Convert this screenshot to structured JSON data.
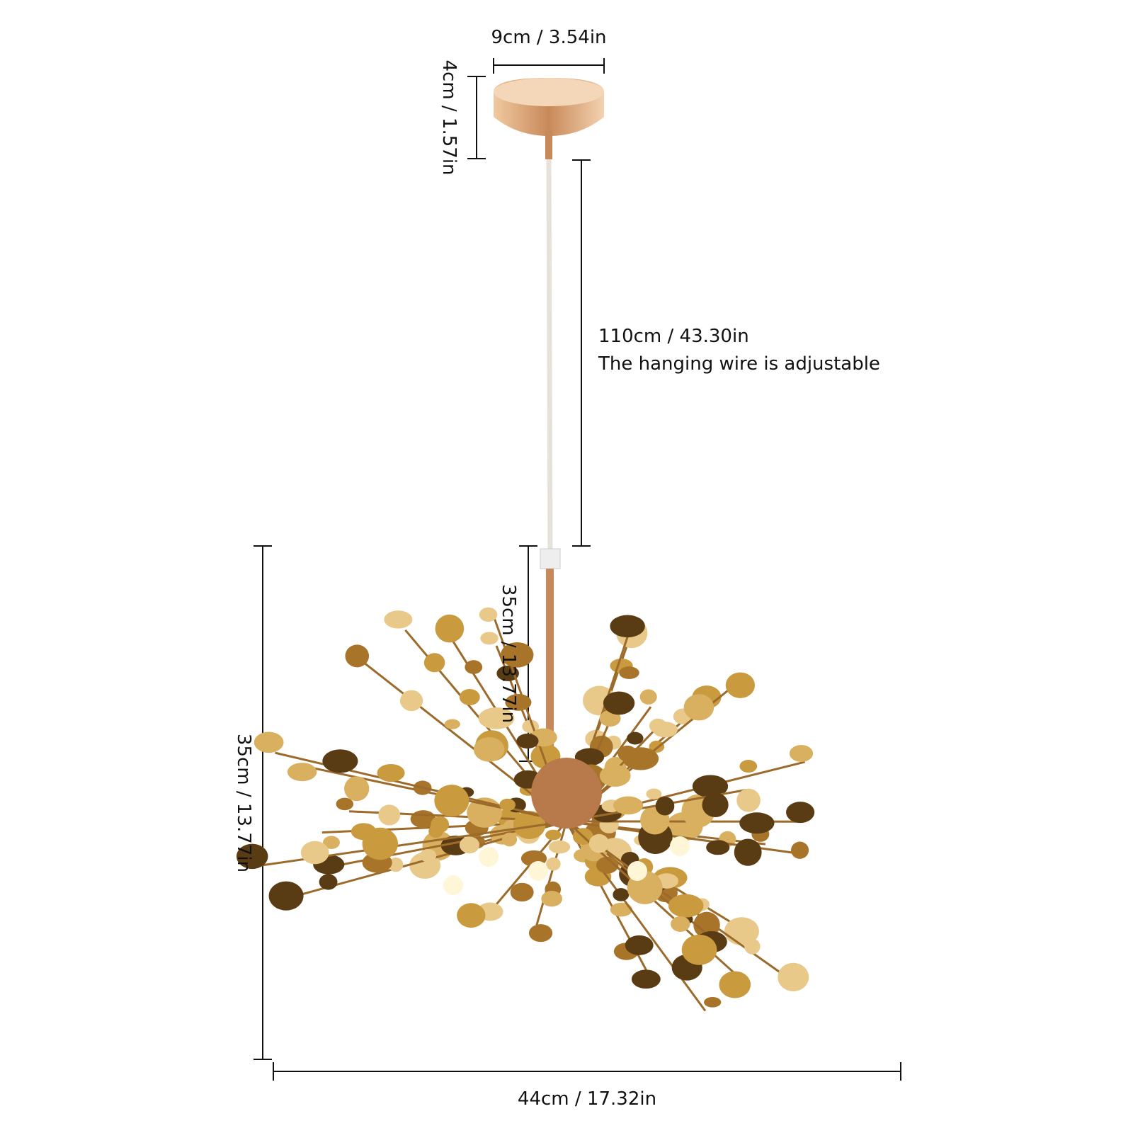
{
  "dimensions": {
    "canopy_width": "9cm / 3.54in",
    "canopy_height": "4cm / 1.57in",
    "wire_length": "110cm / 43.30in",
    "wire_note": "The hanging wire is adjustable",
    "rod_length": "35cm / 13.77in",
    "total_height": "35cm / 13.77in",
    "total_width": "44cm / 17.32in"
  },
  "colors": {
    "gold": "#c99a3e",
    "gold_dark": "#5a3c14",
    "gold_light": "#e8c98a",
    "line": "#111111"
  }
}
